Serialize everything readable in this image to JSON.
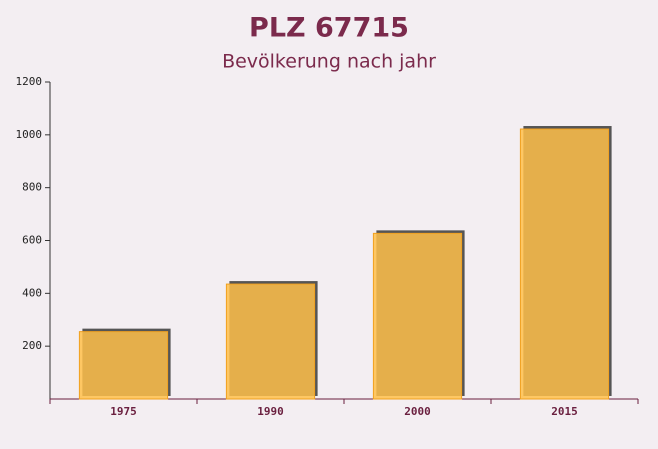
{
  "chart_data": {
    "type": "bar",
    "title": "PLZ 67715",
    "subtitle": "Bevölkerung nach jahr",
    "categories": [
      "1975",
      "1990",
      "2000",
      "2015"
    ],
    "values": [
      255,
      435,
      627,
      1022
    ],
    "color": "#ffc04a",
    "ylim": [
      0,
      1200
    ],
    "yticks": [
      200,
      400,
      600,
      800,
      1000,
      1200
    ]
  }
}
